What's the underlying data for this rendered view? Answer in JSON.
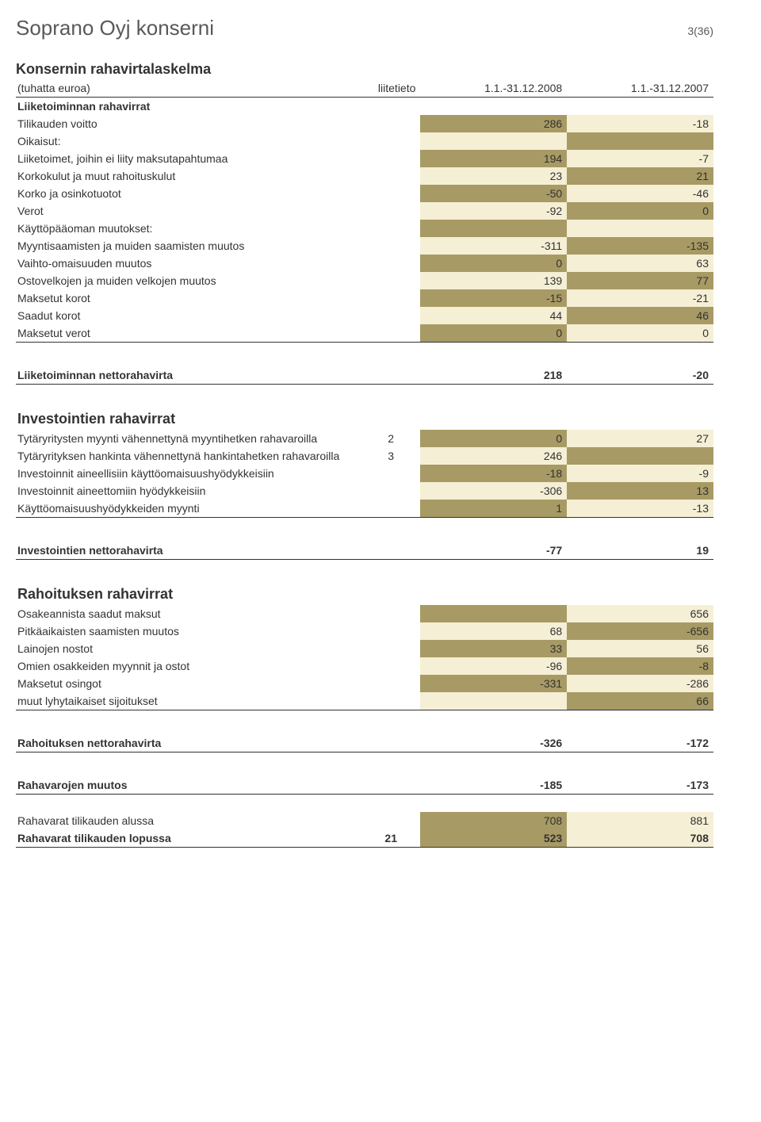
{
  "colors": {
    "dark_cell": "#a79a64",
    "light_cell": "#f5efd6",
    "text": "#333333",
    "muted": "#595959",
    "background": "#ffffff",
    "rule": "#333333"
  },
  "page": {
    "company": "Soprano Oyj konserni",
    "page_ref": "3(36)",
    "title": "Konsernin rahavirtalaskelma",
    "subtitle": "(tuhatta euroa)",
    "col_note": "liitetieto",
    "col_a": "1.1.-31.12.2008",
    "col_b": "1.1.-31.12.2007"
  },
  "ops": {
    "heading": "Liiketoiminnan rahavirrat",
    "rows": [
      {
        "label": "Tilikauden voitto",
        "a": "286",
        "b": "-18"
      },
      {
        "label": "Oikaisut:",
        "empty": true
      },
      {
        "label": "Liiketoimet, joihin ei liity maksutapahtumaa",
        "a": "194",
        "b": "-7"
      },
      {
        "label": "Korkokulut ja muut rahoituskulut",
        "a": "23",
        "b": "21"
      },
      {
        "label": "Korko ja osinkotuotot",
        "a": "-50",
        "b": "-46"
      },
      {
        "label": "Verot",
        "a": "-92",
        "b": "0"
      },
      {
        "label": "Käyttöpääoman muutokset:",
        "empty": true
      },
      {
        "label": "Myyntisaamisten ja muiden saamisten muutos",
        "a": "-311",
        "b": "-135"
      },
      {
        "label": "Vaihto-omaisuuden muutos",
        "a": "0",
        "b": "63"
      },
      {
        "label": "Ostovelkojen ja muiden velkojen muutos",
        "a": "139",
        "b": "77"
      },
      {
        "label": "Maksetut korot",
        "a": "-15",
        "b": "-21"
      },
      {
        "label": "Saadut korot",
        "a": "44",
        "b": "46"
      },
      {
        "label": "Maksetut verot",
        "a": "0",
        "b": "0"
      }
    ],
    "net_label": "Liiketoiminnan nettorahavirta",
    "net_a": "218",
    "net_b": "-20"
  },
  "inv": {
    "heading": "Investointien rahavirrat",
    "rows": [
      {
        "label": "Tytäryritysten myynti vähennettynä myyntihetken rahavaroilla",
        "note": "2",
        "a": "0",
        "b": "27"
      },
      {
        "label": "Tytäryrityksen hankinta vähennettynä hankintahetken rahavaroilla",
        "note": "3",
        "a": "246",
        "b": ""
      },
      {
        "label": "Investoinnit aineellisiin käyttöomaisuushyödykkeisiin",
        "a": "-18",
        "b": "-9"
      },
      {
        "label": "Investoinnit aineettomiin hyödykkeisiin",
        "a": "-306",
        "b": "13"
      },
      {
        "label": "Käyttöomaisuushyödykkeiden myynti",
        "a": "1",
        "b": "-13"
      }
    ],
    "net_label": "Investointien nettorahavirta",
    "net_a": "-77",
    "net_b": "19"
  },
  "fin": {
    "heading": "Rahoituksen rahavirrat",
    "rows": [
      {
        "label": "Osakeannista saadut maksut",
        "a": "",
        "b": "656"
      },
      {
        "label": "Pitkäaikaisten saamisten muutos",
        "a": "68",
        "b": "-656"
      },
      {
        "label": "Lainojen nostot",
        "a": "33",
        "b": "56"
      },
      {
        "label": "Omien osakkeiden myynnit ja ostot",
        "a": "-96",
        "b": "-8"
      },
      {
        "label": "Maksetut osingot",
        "a": "-331",
        "b": "-286"
      },
      {
        "label": "muut lyhytaikaiset sijoitukset",
        "a": "",
        "b": "66"
      }
    ],
    "net_label": "Rahoituksen nettorahavirta",
    "net_a": "-326",
    "net_b": "-172"
  },
  "cash": {
    "change_label": "Rahavarojen muutos",
    "change_a": "-185",
    "change_b": "-173",
    "begin_label": "Rahavarat tilikauden alussa",
    "begin_a": "708",
    "begin_b": "881",
    "end_label": "Rahavarat tilikauden lopussa",
    "end_note": "21",
    "end_a": "523",
    "end_b": "708"
  }
}
